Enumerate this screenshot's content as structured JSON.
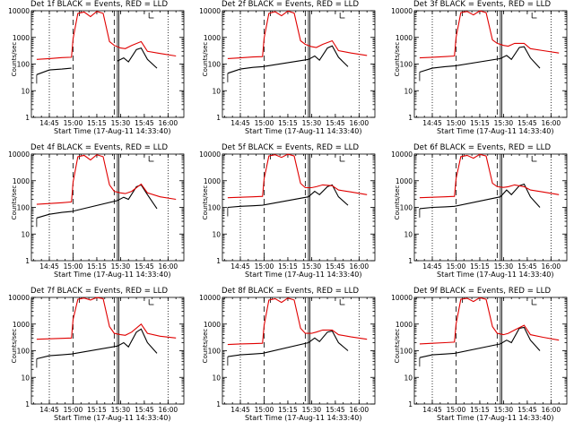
{
  "figure": {
    "colors": {
      "events": "#000000",
      "lld": "#e00000",
      "frame": "#000000"
    }
  },
  "chart_data": [
    {
      "type": "line",
      "title": "Det 1f BLACK = Events, RED = LLD",
      "xlabel": "Start Time (17-Aug-11 14:33:40)",
      "ylabel": "Counts/sec",
      "y_scale": "log",
      "ylim": [
        1,
        10000
      ],
      "y_ticks": [
        "1",
        "10",
        "100",
        "1000",
        "10000"
      ],
      "x_ticks": [
        "14:45",
        "15:00",
        "15:15",
        "15:30",
        "15:45",
        "16:00"
      ],
      "grid": "dotted vertical at 14:45, 16:00",
      "series": [
        {
          "name": "Events",
          "color": "#000000",
          "x": [
            "14:37",
            "14:45",
            "14:53",
            "14:59",
            "15:02",
            "15:10",
            "15:20",
            "15:25",
            "15:28",
            "15:32",
            "15:35",
            "15:40",
            "15:43",
            "15:47",
            "15:53"
          ],
          "y": [
            40,
            60,
            65,
            70,
            null,
            null,
            null,
            null,
            130,
            170,
            120,
            350,
            400,
            150,
            70
          ]
        },
        {
          "name": "LLD",
          "color": "#e00000",
          "x": [
            "14:37",
            "14:45",
            "14:53",
            "14:59",
            "15:00",
            "15:03",
            "15:07",
            "15:11",
            "15:15",
            "15:19",
            "15:23",
            "15:26",
            "15:30",
            "15:33",
            "15:37",
            "15:43",
            "15:47",
            "15:55",
            "16:05"
          ],
          "y": [
            150,
            160,
            175,
            180,
            900,
            8000,
            9000,
            6000,
            9500,
            8000,
            700,
            500,
            400,
            380,
            500,
            700,
            300,
            250,
            200
          ]
        }
      ]
    },
    {
      "type": "line",
      "title": "Det 2f BLACK = Events, RED = LLD",
      "xlabel": "Start Time (17-Aug-11 14:33:40)",
      "ylabel": "Counts/sec",
      "y_scale": "log",
      "ylim": [
        1,
        10000
      ],
      "y_ticks": [
        "1",
        "10",
        "100",
        "1000",
        "10000"
      ],
      "x_ticks": [
        "14:45",
        "15:00",
        "15:15",
        "15:30",
        "15:45",
        "16:00"
      ],
      "grid": "dotted vertical at 14:45, 16:00",
      "series": [
        {
          "name": "Events",
          "color": "#000000",
          "x": [
            "14:37",
            "14:45",
            "14:53",
            "14:59",
            "15:28",
            "15:32",
            "15:35",
            "15:40",
            "15:43",
            "15:47",
            "15:53"
          ],
          "y": [
            45,
            65,
            75,
            80,
            150,
            200,
            140,
            400,
            480,
            180,
            80
          ]
        },
        {
          "name": "LLD",
          "color": "#e00000",
          "x": [
            "14:37",
            "14:45",
            "14:53",
            "14:59",
            "15:00",
            "15:03",
            "15:07",
            "15:11",
            "15:15",
            "15:19",
            "15:23",
            "15:26",
            "15:30",
            "15:33",
            "15:37",
            "15:43",
            "15:47",
            "15:55",
            "16:05"
          ],
          "y": [
            160,
            170,
            185,
            190,
            950,
            8000,
            9200,
            6500,
            9800,
            8200,
            750,
            550,
            450,
            420,
            550,
            750,
            320,
            260,
            210
          ]
        }
      ]
    },
    {
      "type": "line",
      "title": "Det 3f BLACK = Events, RED = LLD",
      "xlabel": "Start Time (17-Aug-11 14:33:40)",
      "ylabel": "Counts/sec",
      "y_scale": "log",
      "ylim": [
        1,
        10000
      ],
      "y_ticks": [
        "1",
        "10",
        "100",
        "1000",
        "10000"
      ],
      "x_ticks": [
        "14:45",
        "15:00",
        "15:15",
        "15:30",
        "15:45",
        "16:00"
      ],
      "grid": "dotted vertical at 14:45, 16:00",
      "series": [
        {
          "name": "Events",
          "color": "#000000",
          "x": [
            "14:37",
            "14:45",
            "14:53",
            "14:59",
            "15:28",
            "15:32",
            "15:35",
            "15:40",
            "15:43",
            "15:47",
            "15:53"
          ],
          "y": [
            50,
            70,
            80,
            85,
            160,
            210,
            150,
            420,
            450,
            170,
            70
          ]
        },
        {
          "name": "LLD",
          "color": "#e00000",
          "x": [
            "14:37",
            "14:45",
            "14:53",
            "14:59",
            "15:00",
            "15:03",
            "15:07",
            "15:11",
            "15:15",
            "15:19",
            "15:23",
            "15:26",
            "15:30",
            "15:33",
            "15:37",
            "15:43",
            "15:47",
            "15:55",
            "16:05"
          ],
          "y": [
            170,
            180,
            190,
            200,
            1000,
            8500,
            9400,
            7000,
            9900,
            8500,
            800,
            600,
            500,
            470,
            600,
            600,
            380,
            320,
            260
          ]
        }
      ]
    },
    {
      "type": "line",
      "title": "Det 4f BLACK = Events, RED = LLD",
      "xlabel": "Start Time (17-Aug-11 14:33:40)",
      "ylabel": "Counts/sec",
      "y_scale": "log",
      "ylim": [
        1,
        10000
      ],
      "y_ticks": [
        "1",
        "10",
        "100",
        "1000",
        "10000"
      ],
      "x_ticks": [
        "14:45",
        "15:00",
        "15:15",
        "15:30",
        "15:45",
        "16:00"
      ],
      "grid": "dotted vertical at 14:45, 16:00",
      "series": [
        {
          "name": "Events",
          "color": "#000000",
          "x": [
            "14:37",
            "14:45",
            "14:53",
            "14:59",
            "15:28",
            "15:32",
            "15:35",
            "15:40",
            "15:43",
            "15:47",
            "15:53"
          ],
          "y": [
            40,
            55,
            65,
            70,
            180,
            240,
            200,
            600,
            700,
            300,
            90
          ]
        },
        {
          "name": "LLD",
          "color": "#e00000",
          "x": [
            "14:37",
            "14:45",
            "14:53",
            "14:59",
            "15:00",
            "15:03",
            "15:07",
            "15:11",
            "15:15",
            "15:19",
            "15:23",
            "15:26",
            "15:30",
            "15:33",
            "15:37",
            "15:43",
            "15:47",
            "15:55",
            "16:05"
          ],
          "y": [
            130,
            140,
            150,
            160,
            900,
            8000,
            9000,
            6000,
            9500,
            8000,
            700,
            400,
            350,
            330,
            400,
            750,
            350,
            250,
            200
          ]
        }
      ]
    },
    {
      "type": "line",
      "title": "Det 5f BLACK = Events, RED = LLD",
      "xlabel": "Start Time (17-Aug-11 14:33:40)",
      "ylabel": "Counts/sec",
      "y_scale": "log",
      "ylim": [
        1,
        10000
      ],
      "y_ticks": [
        "1",
        "10",
        "100",
        "1000",
        "10000"
      ],
      "x_ticks": [
        "14:45",
        "15:00",
        "15:15",
        "15:30",
        "15:45",
        "16:00"
      ],
      "grid": "dotted vertical at 14:45, 16:00",
      "series": [
        {
          "name": "Events",
          "color": "#000000",
          "x": [
            "14:37",
            "14:45",
            "14:53",
            "14:59",
            "15:28",
            "15:32",
            "15:35",
            "15:40",
            "15:43",
            "15:47",
            "15:53"
          ],
          "y": [
            100,
            110,
            115,
            120,
            250,
            400,
            300,
            600,
            700,
            250,
            120
          ]
        },
        {
          "name": "LLD",
          "color": "#e00000",
          "x": [
            "14:37",
            "14:45",
            "14:53",
            "14:59",
            "15:00",
            "15:03",
            "15:07",
            "15:11",
            "15:15",
            "15:19",
            "15:23",
            "15:26",
            "15:30",
            "15:33",
            "15:37",
            "15:43",
            "15:47",
            "15:55",
            "16:05"
          ],
          "y": [
            230,
            240,
            250,
            260,
            1200,
            8500,
            9500,
            7500,
            9900,
            8500,
            800,
            550,
            550,
            600,
            700,
            650,
            450,
            380,
            300
          ]
        }
      ]
    },
    {
      "type": "line",
      "title": "Det 6f BLACK = Events, RED = LLD",
      "xlabel": "Start Time (17-Aug-11 14:33:40)",
      "ylabel": "Counts/sec",
      "y_scale": "log",
      "ylim": [
        1,
        10000
      ],
      "y_ticks": [
        "1",
        "10",
        "100",
        "1000",
        "10000"
      ],
      "x_ticks": [
        "14:45",
        "15:00",
        "15:15",
        "15:30",
        "15:45",
        "16:00"
      ],
      "grid": "dotted vertical at 14:45, 16:00",
      "series": [
        {
          "name": "Events",
          "color": "#000000",
          "x": [
            "14:37",
            "14:45",
            "14:53",
            "14:59",
            "15:28",
            "15:32",
            "15:35",
            "15:40",
            "15:43",
            "15:47",
            "15:53"
          ],
          "y": [
            90,
            100,
            105,
            110,
            250,
            450,
            300,
            650,
            750,
            250,
            100
          ]
        },
        {
          "name": "LLD",
          "color": "#e00000",
          "x": [
            "14:37",
            "14:45",
            "14:53",
            "14:59",
            "15:00",
            "15:03",
            "15:07",
            "15:11",
            "15:15",
            "15:19",
            "15:23",
            "15:26",
            "15:30",
            "15:33",
            "15:37",
            "15:43",
            "15:47",
            "15:55",
            "16:05"
          ],
          "y": [
            230,
            240,
            250,
            260,
            1200,
            8000,
            9000,
            7000,
            9800,
            8500,
            800,
            600,
            560,
            600,
            700,
            600,
            450,
            380,
            300
          ]
        }
      ]
    },
    {
      "type": "line",
      "title": "Det 7f BLACK = Events, RED = LLD",
      "xlabel": "Start Time (17-Aug-11 14:33:40)",
      "ylabel": "Counts/sec",
      "y_scale": "log",
      "ylim": [
        1,
        10000
      ],
      "y_ticks": [
        "1",
        "10",
        "100",
        "1000",
        "10000"
      ],
      "x_ticks": [
        "14:45",
        "15:00",
        "15:15",
        "15:30",
        "15:45",
        "16:00"
      ],
      "grid": "dotted vertical at 14:45, 16:00",
      "series": [
        {
          "name": "Events",
          "color": "#000000",
          "x": [
            "14:37",
            "14:45",
            "14:53",
            "14:59",
            "15:28",
            "15:32",
            "15:35",
            "15:40",
            "15:43",
            "15:47",
            "15:53"
          ],
          "y": [
            50,
            65,
            70,
            75,
            150,
            200,
            140,
            500,
            650,
            200,
            80
          ]
        },
        {
          "name": "LLD",
          "color": "#e00000",
          "x": [
            "14:37",
            "14:45",
            "14:53",
            "14:59",
            "15:00",
            "15:03",
            "15:07",
            "15:11",
            "15:15",
            "15:19",
            "15:23",
            "15:26",
            "15:30",
            "15:33",
            "15:37",
            "15:43",
            "15:47",
            "15:55",
            "16:05"
          ],
          "y": [
            270,
            280,
            290,
            300,
            1500,
            8500,
            9500,
            8000,
            9900,
            9000,
            800,
            450,
            400,
            380,
            500,
            1000,
            450,
            350,
            300
          ]
        }
      ]
    },
    {
      "type": "line",
      "title": "Det 8f BLACK = Events, RED = LLD",
      "xlabel": "Start Time (17-Aug-11 14:33:40)",
      "ylabel": "Counts/sec",
      "y_scale": "log",
      "ylim": [
        1,
        10000
      ],
      "y_ticks": [
        "1",
        "10",
        "100",
        "1000",
        "10000"
      ],
      "x_ticks": [
        "14:45",
        "15:00",
        "15:15",
        "15:30",
        "15:45",
        "16:00"
      ],
      "grid": "dotted vertical at 14:45, 16:00",
      "series": [
        {
          "name": "Events",
          "color": "#000000",
          "x": [
            "14:37",
            "14:45",
            "14:53",
            "14:59",
            "15:28",
            "15:32",
            "15:35",
            "15:40",
            "15:43",
            "15:47",
            "15:53"
          ],
          "y": [
            60,
            70,
            75,
            80,
            200,
            300,
            220,
            500,
            550,
            200,
            100
          ]
        },
        {
          "name": "LLD",
          "color": "#e00000",
          "x": [
            "14:37",
            "14:45",
            "14:53",
            "14:59",
            "15:00",
            "15:03",
            "15:07",
            "15:11",
            "15:15",
            "15:19",
            "15:23",
            "15:26",
            "15:30",
            "15:33",
            "15:37",
            "15:43",
            "15:47",
            "15:55",
            "16:05"
          ],
          "y": [
            170,
            180,
            185,
            190,
            900,
            8000,
            9000,
            6500,
            9500,
            8000,
            700,
            450,
            450,
            500,
            600,
            600,
            400,
            330,
            270
          ]
        }
      ]
    },
    {
      "type": "line",
      "title": "Det 9f BLACK = Events, RED = LLD",
      "xlabel": "Start Time (17-Aug-11 14:33:40)",
      "ylabel": "Counts/sec",
      "y_scale": "log",
      "ylim": [
        1,
        10000
      ],
      "y_ticks": [
        "1",
        "10",
        "100",
        "1000",
        "10000"
      ],
      "x_ticks": [
        "14:45",
        "15:00",
        "15:15",
        "15:30",
        "15:45",
        "16:00"
      ],
      "grid": "dotted vertical at 14:45, 16:00",
      "series": [
        {
          "name": "Events",
          "color": "#000000",
          "x": [
            "14:37",
            "14:45",
            "14:53",
            "14:59",
            "15:28",
            "15:32",
            "15:35",
            "15:40",
            "15:43",
            "15:47",
            "15:53"
          ],
          "y": [
            55,
            70,
            75,
            80,
            180,
            250,
            200,
            700,
            750,
            250,
            100
          ]
        },
        {
          "name": "LLD",
          "color": "#e00000",
          "x": [
            "14:37",
            "14:45",
            "14:53",
            "14:59",
            "15:00",
            "15:03",
            "15:07",
            "15:11",
            "15:15",
            "15:19",
            "15:23",
            "15:26",
            "15:30",
            "15:33",
            "15:37",
            "15:43",
            "15:47",
            "15:55",
            "16:05"
          ],
          "y": [
            180,
            190,
            200,
            210,
            1000,
            8500,
            9300,
            7000,
            9800,
            8500,
            800,
            450,
            400,
            450,
            600,
            900,
            400,
            320,
            250
          ]
        }
      ]
    }
  ]
}
